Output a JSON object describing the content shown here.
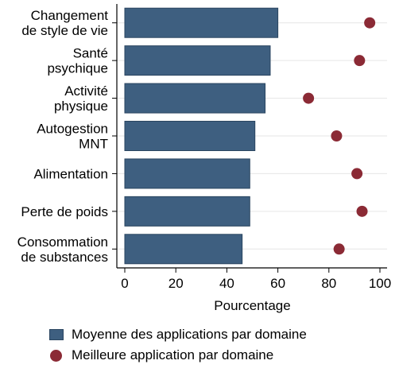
{
  "chart_data": {
    "type": "bar",
    "orientation": "horizontal",
    "categories": [
      [
        "Changement",
        "de style de vie"
      ],
      [
        "Santé",
        "psychique"
      ],
      [
        "Activité",
        "physique"
      ],
      [
        "Autogestion",
        "MNT"
      ],
      [
        "Alimentation"
      ],
      [
        "Perte de poids"
      ],
      [
        "Consommation",
        "de substances"
      ]
    ],
    "series": [
      {
        "name": "Moyenne des applications par domaine",
        "kind": "bar",
        "color": "#3e5f80",
        "values": [
          60,
          57,
          55,
          51,
          49,
          49,
          46
        ]
      },
      {
        "name": "Meilleure application par domaine",
        "kind": "dot",
        "color": "#8b2a35",
        "values": [
          96,
          92,
          72,
          83,
          91,
          93,
          84
        ]
      }
    ],
    "xlabel": "Pourcentage",
    "ylabel": "",
    "xlim": [
      0,
      100
    ],
    "xticks": [
      "0",
      "20",
      "40",
      "60",
      "80",
      "100"
    ],
    "grid": true,
    "legend_position": "bottom"
  }
}
